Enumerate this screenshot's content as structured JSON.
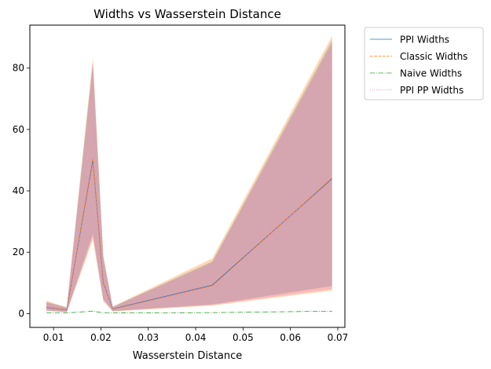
{
  "chart_data": {
    "type": "line",
    "title": "Widths vs Wasserstein Distance",
    "xlabel": "Wasserstein Distance",
    "ylabel": "",
    "xlim": [
      0.005,
      0.0715
    ],
    "ylim": [
      -4.5,
      94
    ],
    "xticks": [
      0.01,
      0.02,
      0.03,
      0.04,
      0.05,
      0.06,
      0.07
    ],
    "xtick_labels": [
      "0.01",
      "0.02",
      "0.03",
      "0.04",
      "0.05",
      "0.06",
      "0.07"
    ],
    "yticks": [
      0,
      20,
      40,
      60,
      80
    ],
    "ytick_labels": [
      "0",
      "20",
      "40",
      "60",
      "80"
    ],
    "grid": false,
    "legend_position": "outside-top-right",
    "x": [
      0.0085,
      0.0128,
      0.0183,
      0.0205,
      0.0225,
      0.0435,
      0.0688
    ],
    "series": [
      {
        "name": "PPI Widths",
        "style": "solid",
        "color": "#1f77b4",
        "values": [
          2.0,
          1.2,
          50.0,
          10.0,
          1.5,
          9.3,
          44.0
        ],
        "band_low": [
          1.0,
          0.5,
          26.0,
          4.5,
          0.8,
          3.0,
          9.0
        ],
        "band_high": [
          3.8,
          2.0,
          82.0,
          18.5,
          2.2,
          17.0,
          89.0
        ]
      },
      {
        "name": "Classic Widths",
        "style": "dashed",
        "color": "#ff7f0e",
        "values": [
          2.1,
          1.2,
          50.5,
          10.2,
          1.4,
          9.0,
          44.2
        ],
        "band_low": [
          0.9,
          0.4,
          24.0,
          4.0,
          0.7,
          2.6,
          7.5
        ],
        "band_high": [
          4.2,
          2.1,
          83.5,
          19.0,
          2.3,
          18.0,
          90.5
        ]
      },
      {
        "name": "Naive Widths",
        "style": "dashdot",
        "color": "#2ca02c",
        "values": [
          0.2,
          0.2,
          0.8,
          0.2,
          0.2,
          0.3,
          0.8
        ]
      },
      {
        "name": "PPI PP Widths",
        "style": "dotted",
        "color": "#e377c2",
        "values": [
          1.9,
          1.1,
          49.0,
          9.8,
          1.4,
          9.1,
          43.5
        ],
        "band_low": [
          1.0,
          0.5,
          25.0,
          4.5,
          0.8,
          2.8,
          8.0
        ],
        "band_high": [
          3.6,
          1.9,
          81.0,
          18.0,
          2.1,
          16.5,
          88.0
        ]
      }
    ]
  }
}
